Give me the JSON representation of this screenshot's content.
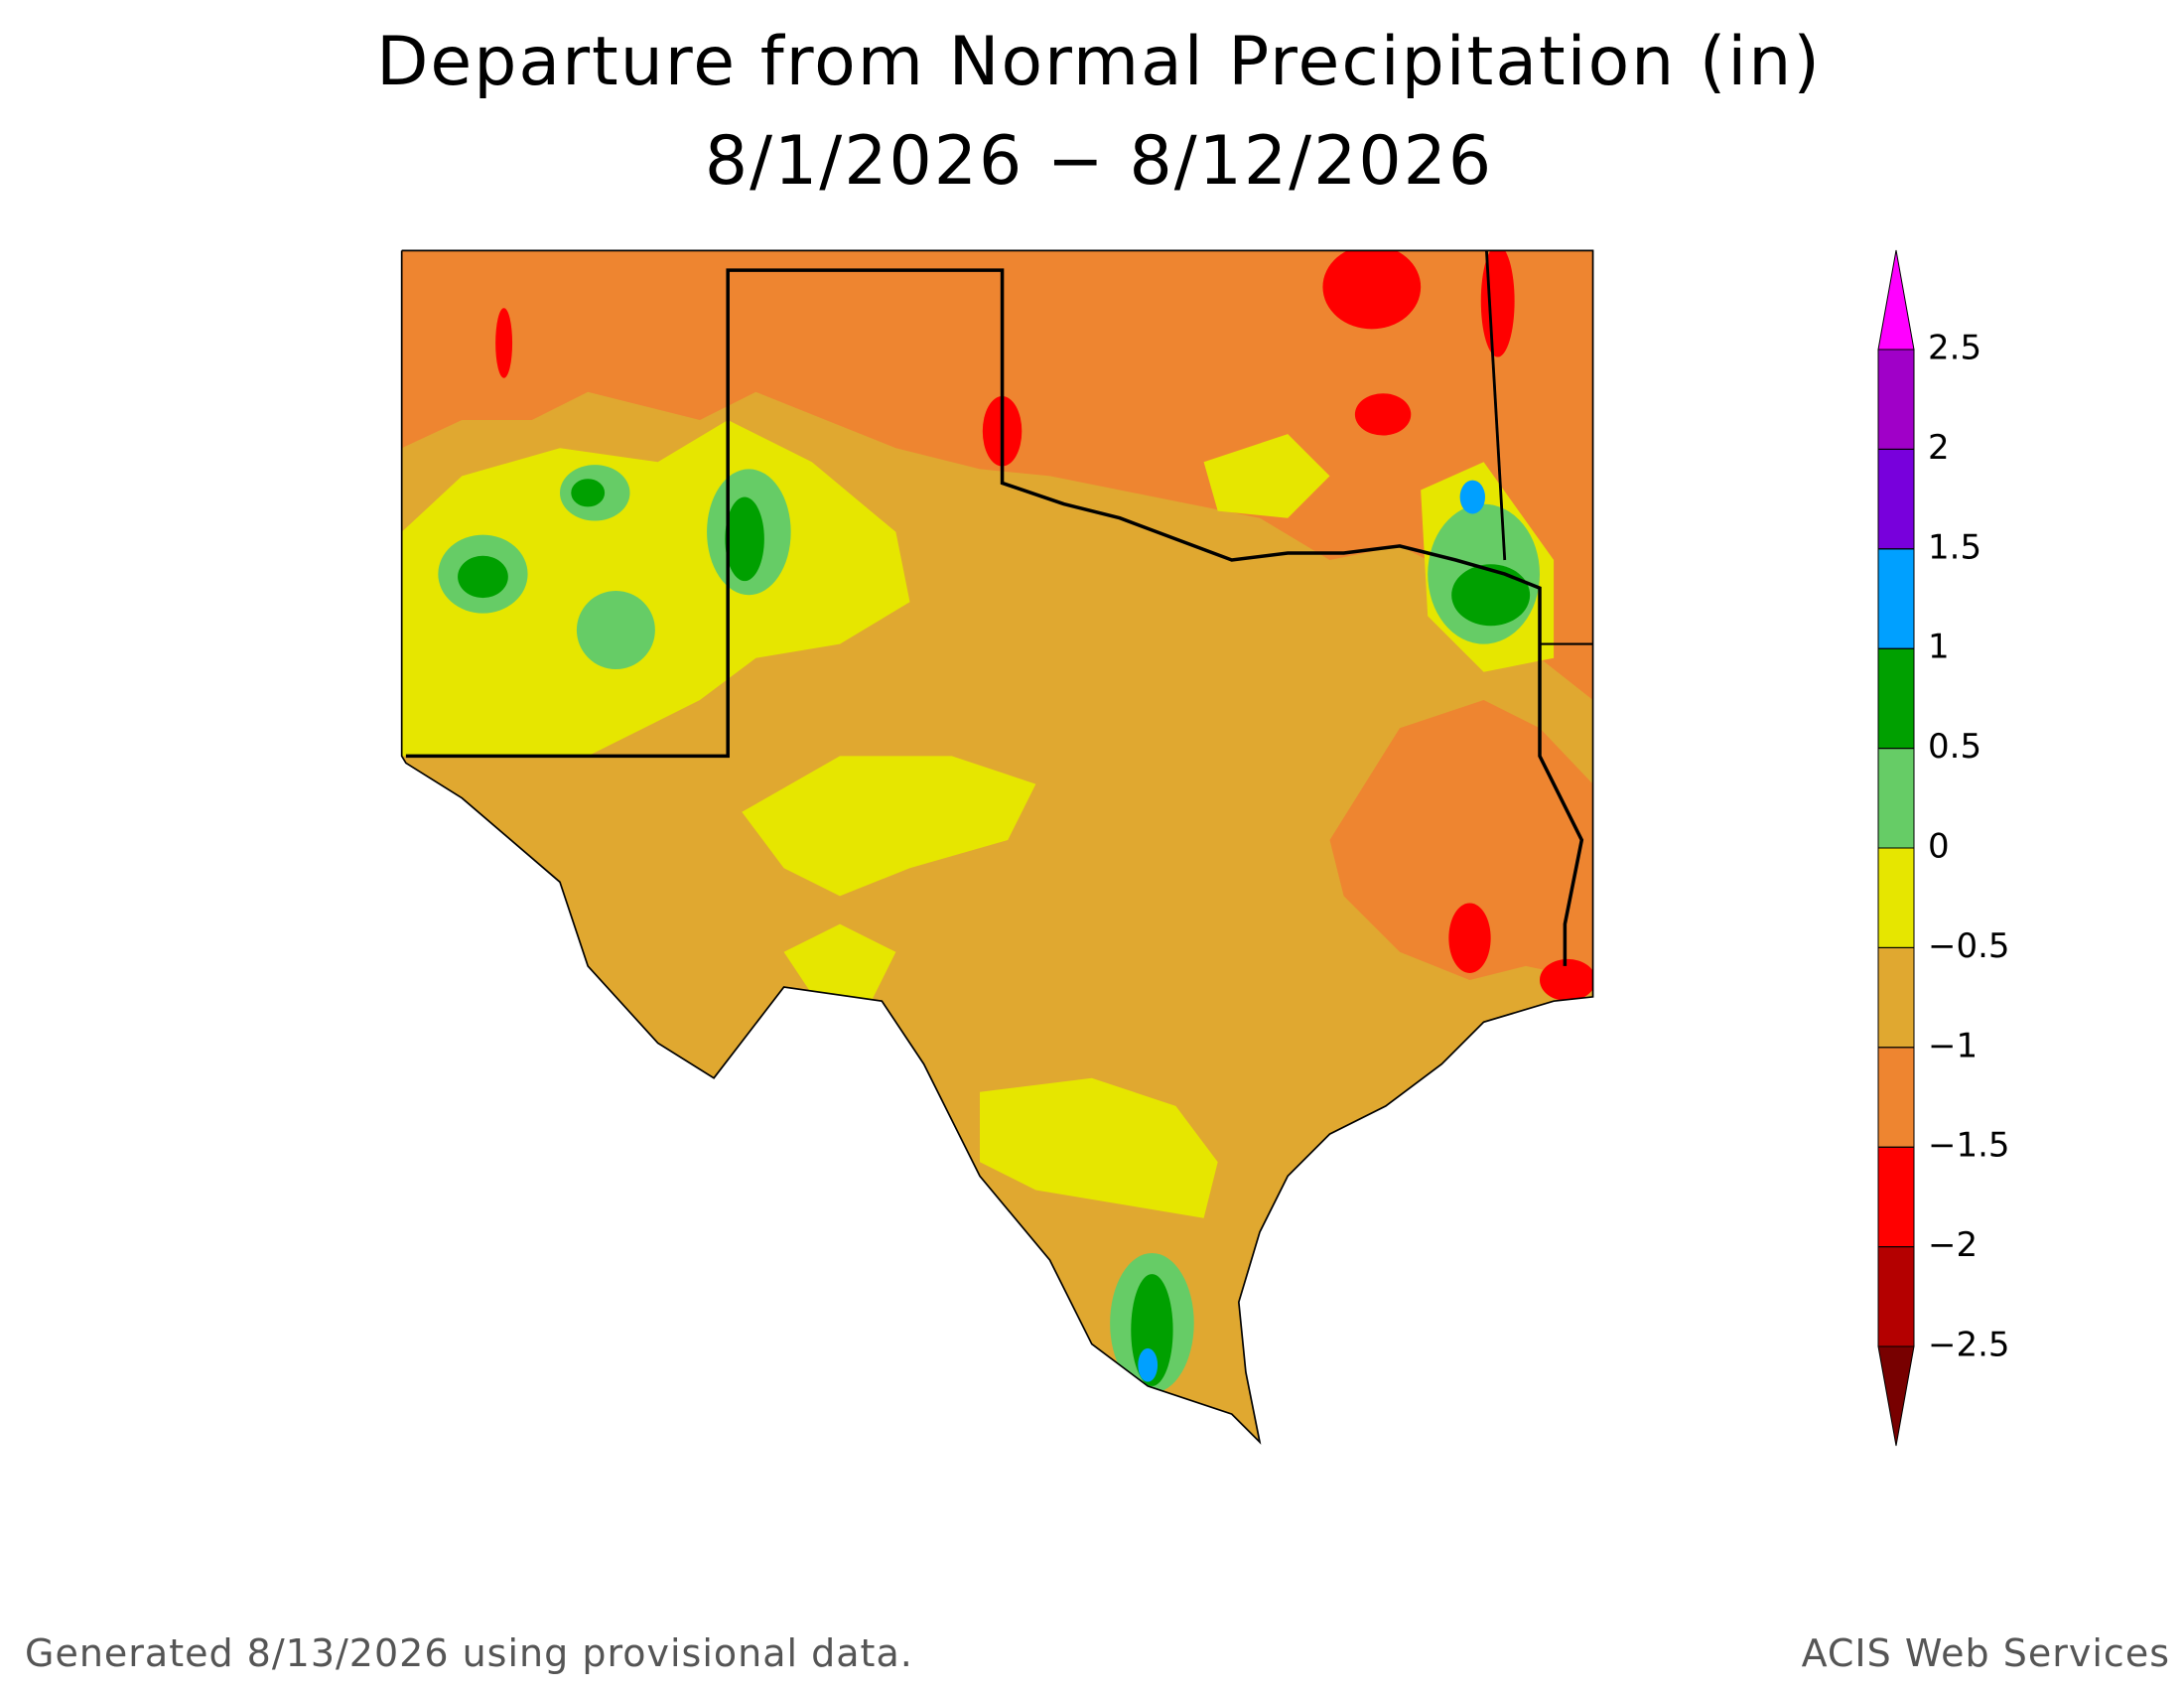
{
  "title": "Departure from Normal Precipitation (in)",
  "subtitle": "8/1/2026 − 8/12/2026",
  "footer_left": "Generated 8/13/2026  using provisional data.",
  "footer_right": "ACIS Web Services",
  "colorbar": {
    "ticks": [
      {
        "value": -2.5,
        "label": "−2.5"
      },
      {
        "value": -2,
        "label": "−2"
      },
      {
        "value": -1.5,
        "label": "−1.5"
      },
      {
        "value": -1,
        "label": "−1"
      },
      {
        "value": -0.5,
        "label": "−0.5"
      },
      0,
      0.5,
      1,
      1.5,
      2,
      2.5
    ],
    "colors": [
      "#780000",
      "#b40000",
      "#ff0000",
      "#ee8530",
      "#e0a830",
      "#e6e600",
      "#66cc66",
      "#00a000",
      "#00a0ff",
      "#7800dc",
      "#a000c8",
      "#ff00ff"
    ]
  }
}
